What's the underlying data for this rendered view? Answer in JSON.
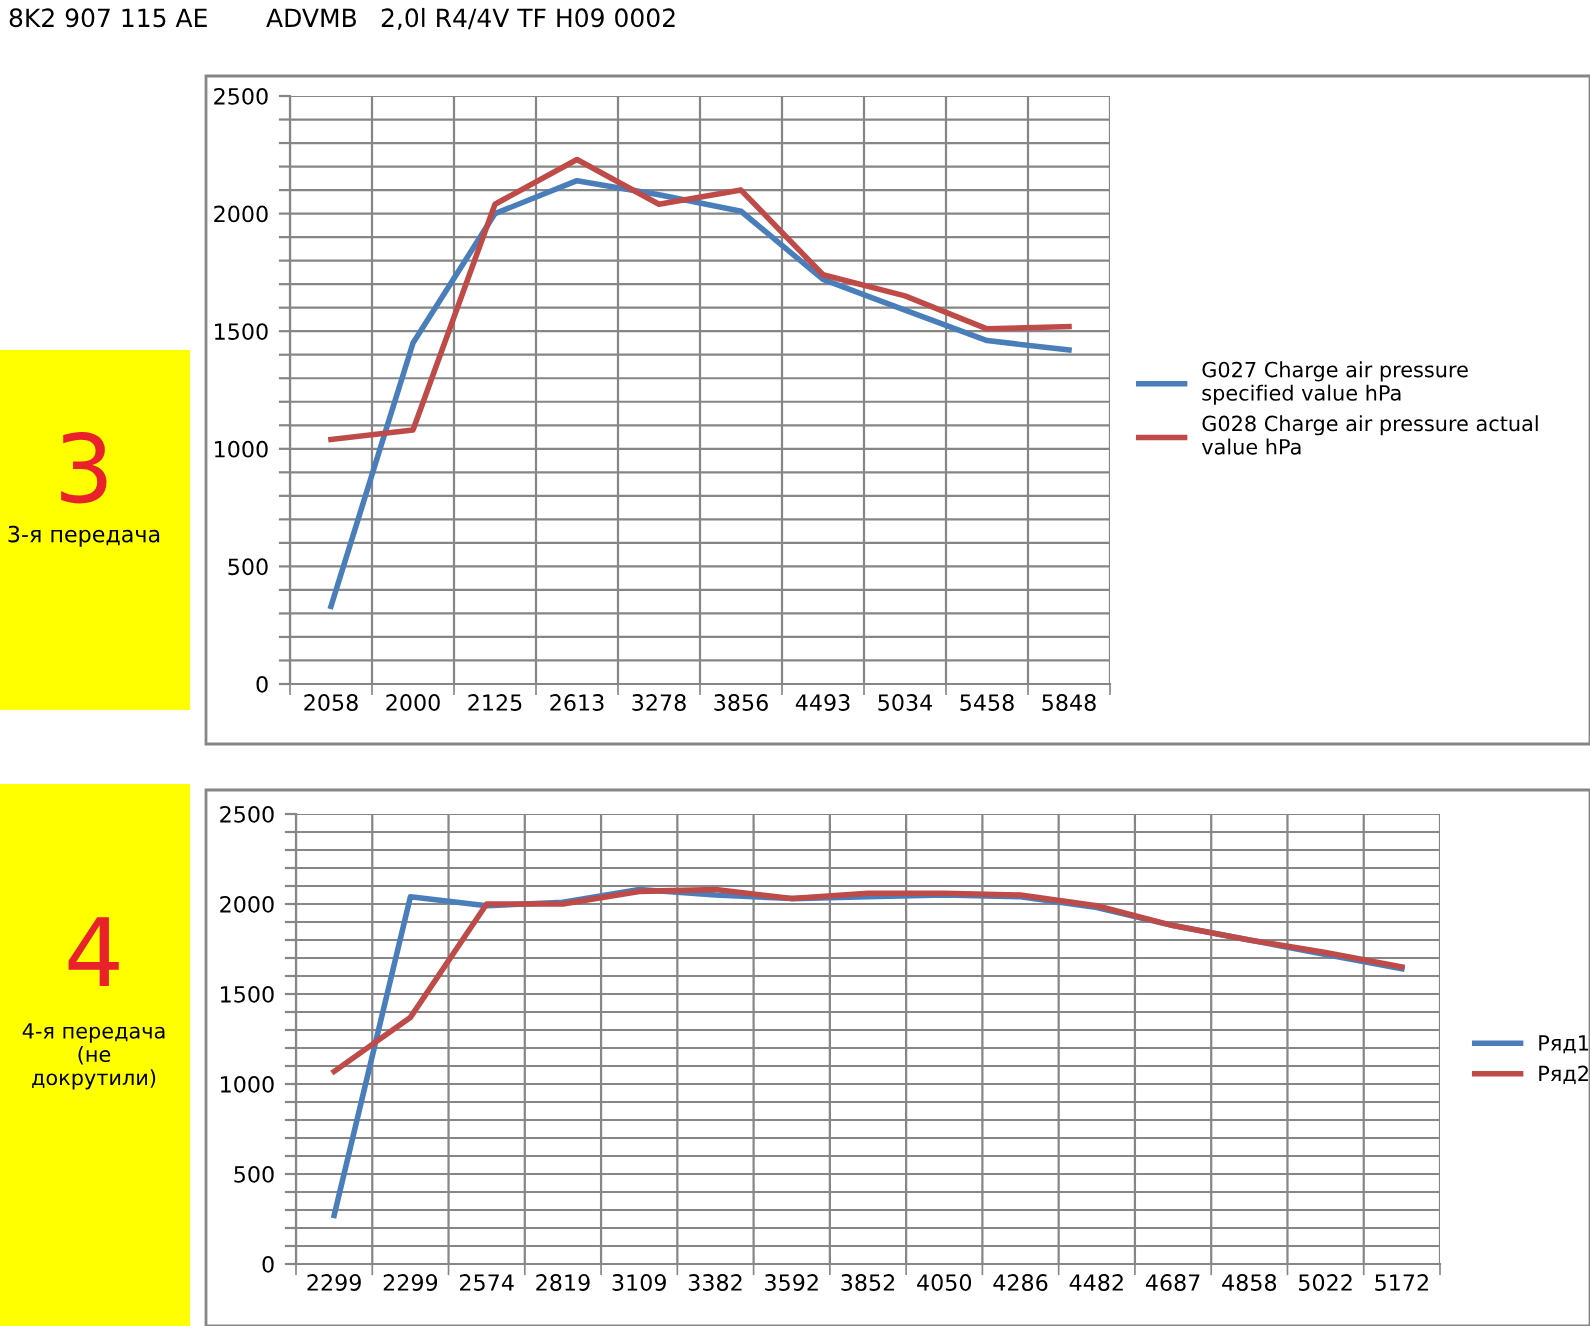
{
  "chart_data": [
    {
      "type": "line",
      "categories": [
        "2058",
        "2000",
        "2125",
        "2613",
        "3278",
        "3856",
        "4493",
        "5034",
        "5458",
        "5848"
      ],
      "series": [
        {
          "name": "G027 Charge air pressure specified value hPa",
          "color": "#4a7ebb",
          "values": [
            330,
            1450,
            2000,
            2140,
            2080,
            2010,
            1720,
            1590,
            1460,
            1420
          ]
        },
        {
          "name": "G028 Charge air pressure actual value hPa",
          "color": "#be4b48",
          "values": [
            1040,
            1080,
            2040,
            2230,
            2040,
            2100,
            1740,
            1650,
            1510,
            1520
          ]
        }
      ],
      "ylim": [
        0,
        2500
      ],
      "yticks": [
        0,
        {
          "value": 100,
          "label": null
        },
        {
          "value": 200,
          "label": null
        },
        {
          "value": 300,
          "label": null
        },
        {
          "value": 400,
          "label": null
        },
        500,
        {
          "value": 600,
          "label": null
        },
        {
          "value": 700,
          "label": null
        },
        {
          "value": 800,
          "label": null
        },
        {
          "value": 900,
          "label": null
        },
        1000,
        {
          "value": 1100,
          "label": null
        },
        {
          "value": 1200,
          "label": null
        },
        {
          "value": 1300,
          "label": null
        },
        {
          "value": 1400,
          "label": null
        },
        1500,
        {
          "value": 1600,
          "label": null
        },
        {
          "value": 1700,
          "label": null
        },
        {
          "value": 1800,
          "label": null
        },
        {
          "value": 1900,
          "label": null
        },
        2000,
        {
          "value": 2100,
          "label": null
        },
        {
          "value": 2200,
          "label": null
        },
        {
          "value": 2300,
          "label": null
        },
        {
          "value": 2400,
          "label": null
        },
        2500
      ],
      "grid": true,
      "legend": "right",
      "marker": "none",
      "line_style": "solid",
      "annotations": [
        "8K2 907 115 AE",
        "ADVMB",
        "2,0l R4/4V TF H09 0002",
        "3",
        "3-я передача"
      ]
    },
    {
      "type": "line",
      "categories": [
        "2299",
        "2299",
        "2574",
        "2819",
        "3109",
        "3382",
        "3592",
        "3852",
        "4050",
        "4286",
        "4482",
        "4687",
        "4858",
        "5022",
        "5172"
      ],
      "series": [
        {
          "name": "Ряд1",
          "color": "#4a7ebb",
          "values": [
            270,
            2040,
            1990,
            2010,
            2080,
            2050,
            2030,
            2040,
            2050,
            2040,
            1980,
            1880,
            1800,
            1720,
            1640
          ]
        },
        {
          "name": "Ряд2",
          "color": "#be4b48",
          "values": [
            1070,
            1370,
            2000,
            2000,
            2070,
            2080,
            2030,
            2060,
            2060,
            2050,
            1990,
            1880,
            1800,
            1730,
            1650
          ]
        }
      ],
      "ylim": [
        0,
        2500
      ],
      "yticks": [
        0,
        {
          "value": 100,
          "label": null
        },
        {
          "value": 200,
          "label": null
        },
        {
          "value": 300,
          "label": null
        },
        {
          "value": 400,
          "label": null
        },
        500,
        {
          "value": 600,
          "label": null
        },
        {
          "value": 700,
          "label": null
        },
        {
          "value": 800,
          "label": null
        },
        {
          "value": 900,
          "label": null
        },
        1000,
        {
          "value": 1100,
          "label": null
        },
        {
          "value": 1200,
          "label": null
        },
        {
          "value": 1300,
          "label": null
        },
        {
          "value": 1400,
          "label": null
        },
        1500,
        {
          "value": 1600,
          "label": null
        },
        {
          "value": 1700,
          "label": null
        },
        {
          "value": 1800,
          "label": null
        },
        {
          "value": 1900,
          "label": null
        },
        2000,
        {
          "value": 2100,
          "label": null
        },
        {
          "value": 2200,
          "label": null
        },
        {
          "value": 2300,
          "label": null
        },
        {
          "value": 2400,
          "label": null
        },
        2500
      ],
      "grid": true,
      "legend": "right",
      "marker": "none",
      "line_style": "solid",
      "annotations": [
        "4",
        "4-я передача (не докрутили)"
      ]
    }
  ]
}
